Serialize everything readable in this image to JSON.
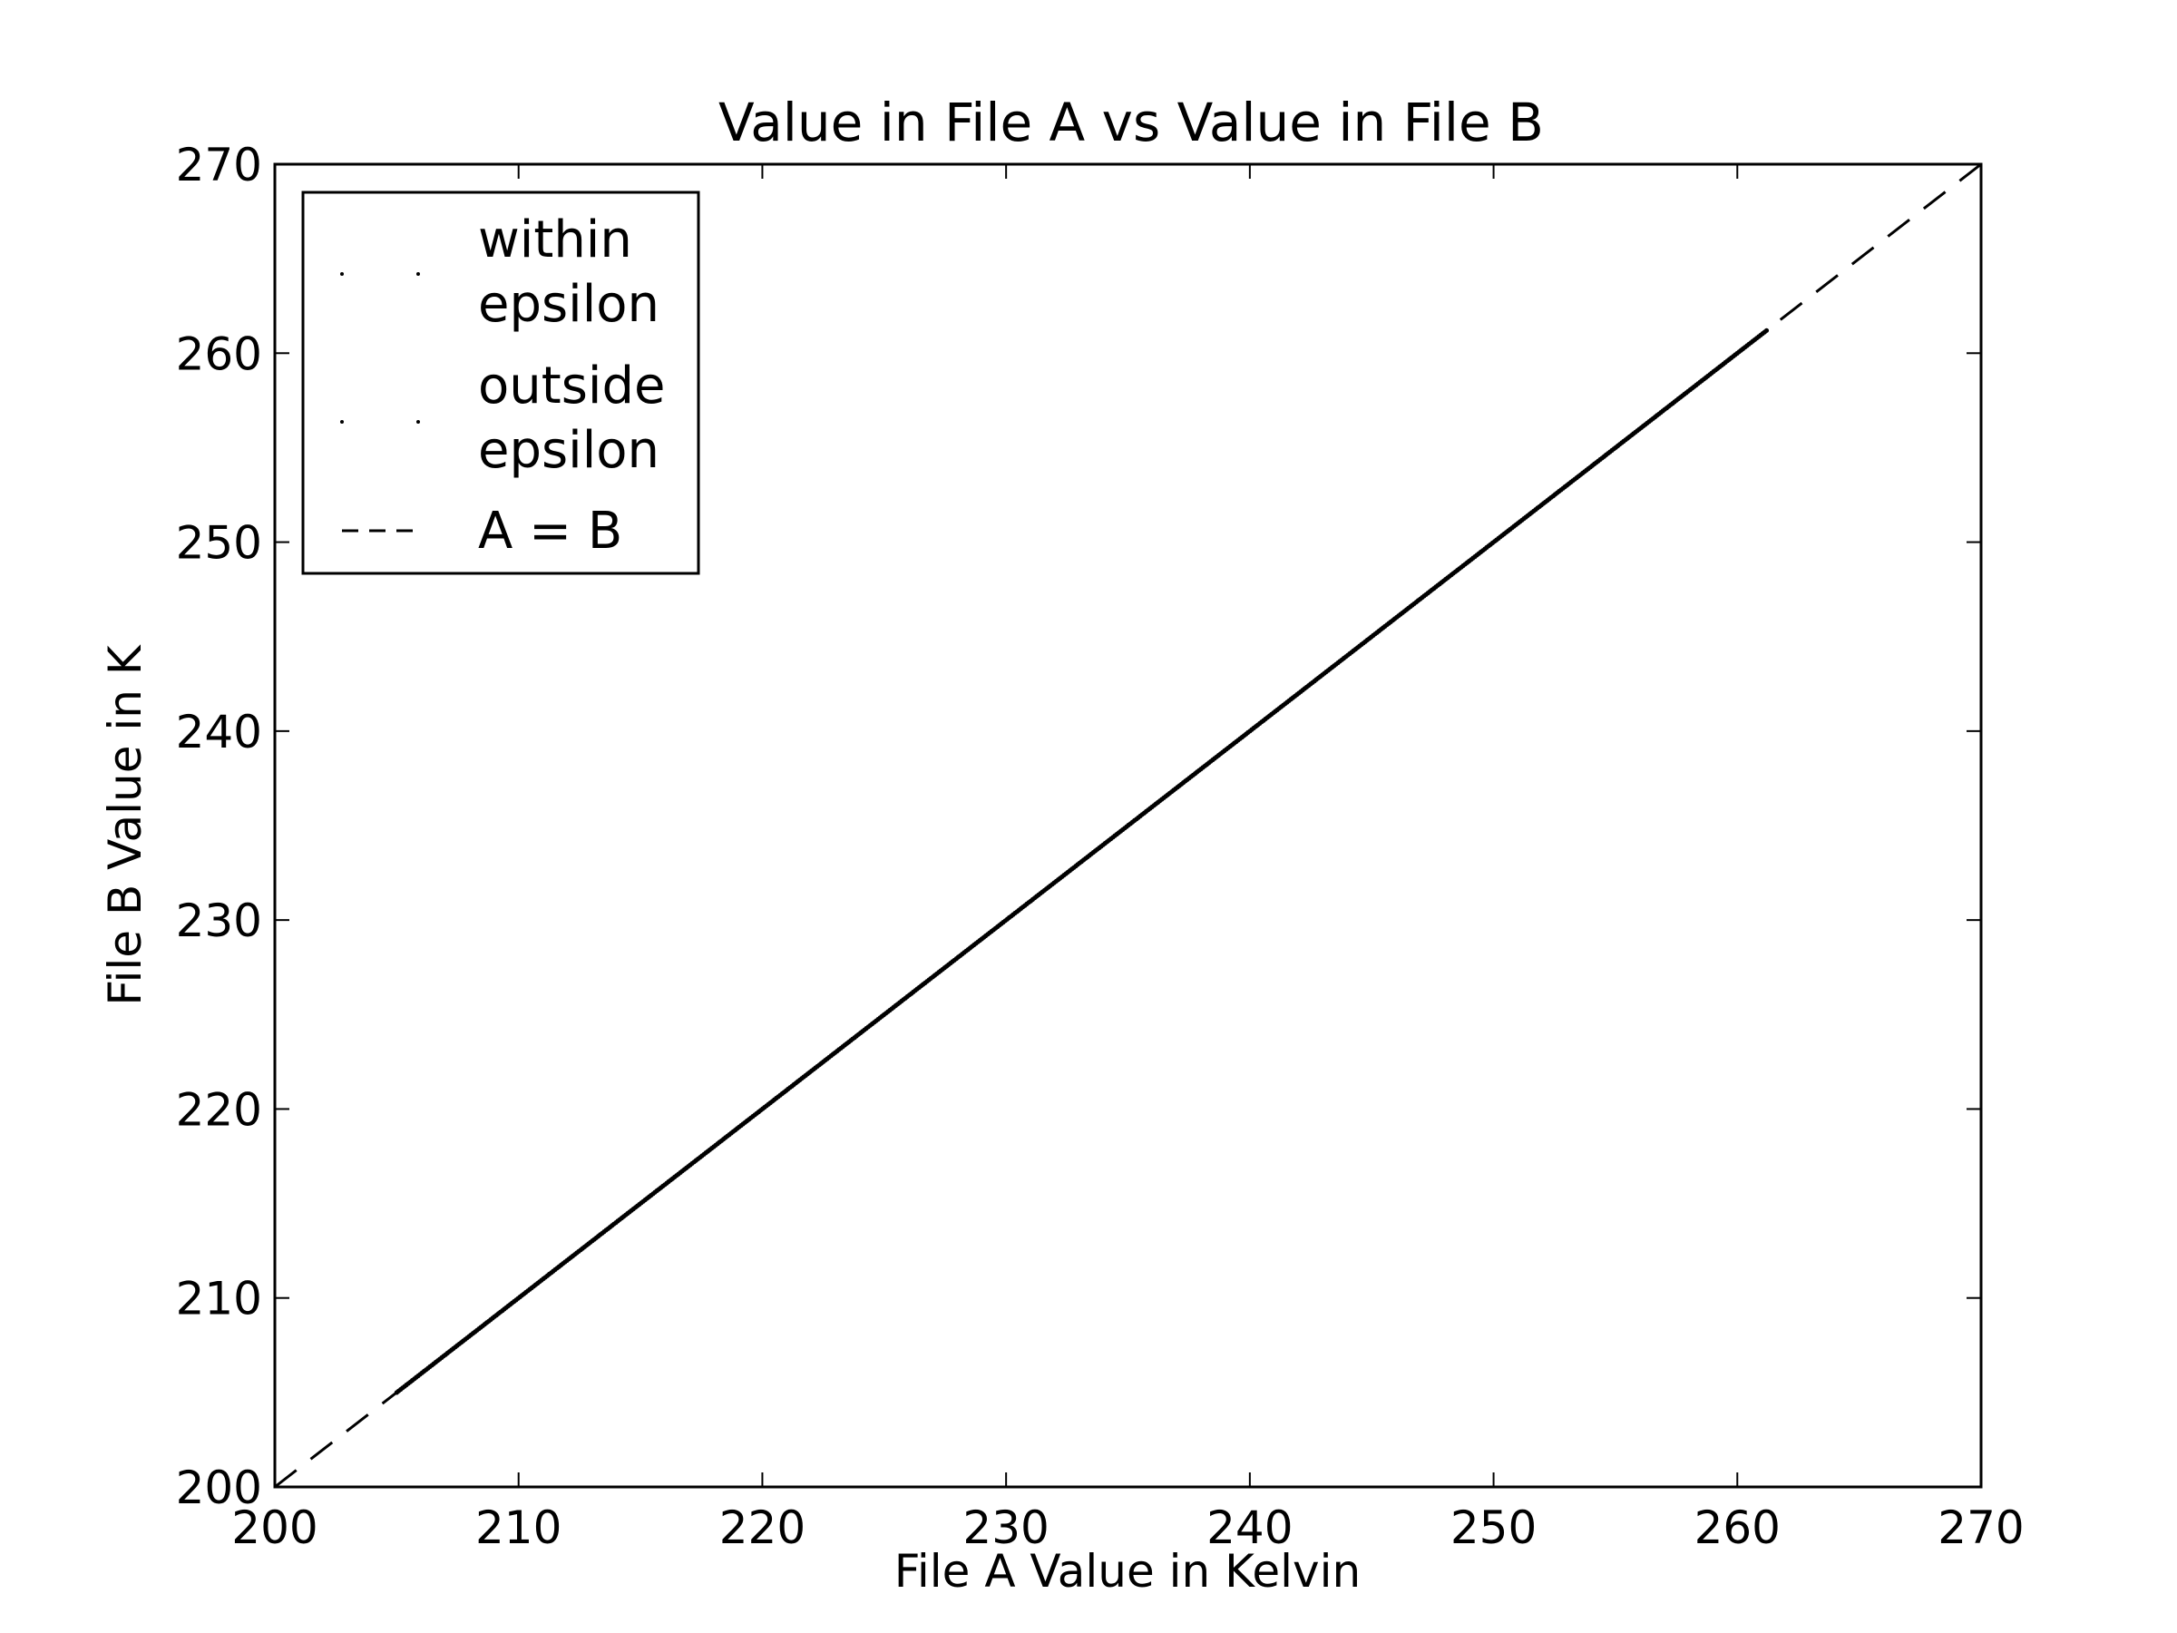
{
  "chart_data": {
    "type": "scatter",
    "title": "Value in File A vs Value in File B",
    "xlabel": "File A Value in Kelvin",
    "ylabel": "File B Value in K",
    "xlim": [
      200,
      270
    ],
    "ylim": [
      200,
      270
    ],
    "xticks": [
      200,
      210,
      220,
      230,
      240,
      250,
      260,
      270
    ],
    "yticks": [
      200,
      210,
      220,
      230,
      240,
      250,
      260,
      270
    ],
    "xtick_labels": [
      "200",
      "210",
      "220",
      "230",
      "240",
      "250",
      "260",
      "270"
    ],
    "ytick_labels": [
      "200",
      "210",
      "220",
      "230",
      "240",
      "250",
      "260",
      "270"
    ],
    "grid": false,
    "legend_position": "upper-left",
    "legend": [
      {
        "label_lines": [
          "within",
          "epsilon"
        ],
        "marker": "dot"
      },
      {
        "label_lines": [
          "outside",
          "epsilon"
        ],
        "marker": "dot"
      },
      {
        "label_lines": [
          "A = B"
        ],
        "marker": "dashed-line"
      }
    ],
    "series": [
      {
        "name": "within epsilon",
        "kind": "points",
        "color": "#000000",
        "x_range": [
          205.0,
          261.2
        ],
        "relation": "y = x"
      },
      {
        "name": "outside epsilon",
        "kind": "points",
        "color": "#000000",
        "x_range": [
          205.0,
          261.2
        ],
        "relation": "y = x"
      },
      {
        "name": "A = B",
        "kind": "dashed-line",
        "color": "#000000",
        "x": [
          200,
          270
        ],
        "y": [
          200,
          270
        ]
      }
    ]
  }
}
